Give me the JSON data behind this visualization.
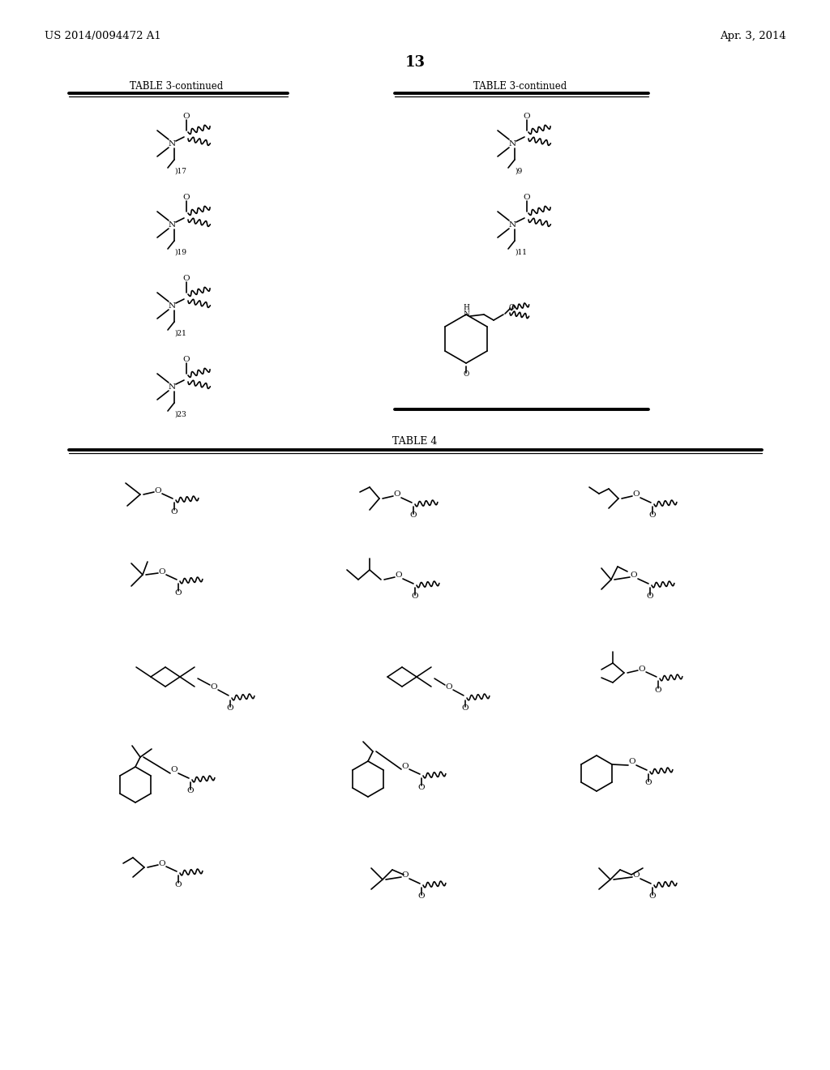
{
  "patent_number": "US 2014/0094472 A1",
  "date": "Apr. 3, 2014",
  "page_number": "13",
  "table3_title": "TABLE 3-continued",
  "table4_title": "TABLE 4"
}
